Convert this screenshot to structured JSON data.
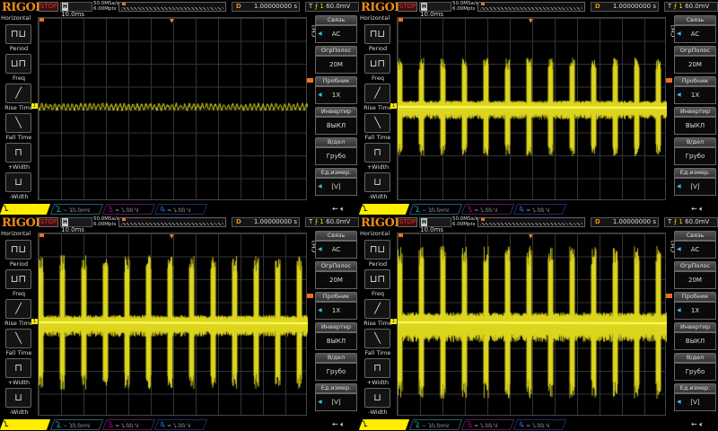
{
  "header": {
    "logo": "RIGOL",
    "status": "STOP",
    "h_icon": "H",
    "timebase": "10.0ms",
    "sample_rate": "50.0MSa/s",
    "memory_depth": "6.00Mpts",
    "delay_label": "D",
    "delay_value": "1.00000000 s",
    "trigger_label": "T",
    "trigger_edge": "rising-edge-icon",
    "trigger_source": "1",
    "trigger_level": "60.0mV"
  },
  "sidebar": {
    "title": "Horizontal",
    "items": [
      {
        "label": "Period",
        "icon": "period-icon"
      },
      {
        "label": "Freq",
        "icon": "freq-icon"
      },
      {
        "label": "Rise Time",
        "icon": "rise-time-icon"
      },
      {
        "label": "Fall Time",
        "icon": "fall-time-icon"
      },
      {
        "label": "+Width",
        "icon": "positive-width-icon"
      },
      {
        "label": "-Width",
        "icon": "negative-width-icon"
      }
    ]
  },
  "menu": {
    "channel": "CH1",
    "items": [
      {
        "title": "Связь",
        "value": "AC",
        "arrow": true
      },
      {
        "title": "ОгрПолос",
        "value": "20M",
        "arrow": false
      },
      {
        "title": "Пробник",
        "value": "1X",
        "arrow": true
      },
      {
        "title": "Инвертир",
        "value": "ВЫКЛ",
        "arrow": false
      },
      {
        "title": "В/дел",
        "value": "Грубо",
        "arrow": false
      },
      {
        "title": "Ед.измер.",
        "value": "[V]",
        "arrow": true
      }
    ]
  },
  "channels": [
    {
      "num": "1",
      "coupling": "~",
      "scale": "50.0mV",
      "bw": "B",
      "color": "#ffee00"
    },
    {
      "num": "2",
      "coupling": "~",
      "scale": "20.0mV",
      "color": "#22aaaa"
    },
    {
      "num": "3",
      "coupling": "=",
      "scale": "1.00 V",
      "color": "#aa00aa"
    },
    {
      "num": "4",
      "coupling": "=",
      "scale": "1.00 V",
      "color": "#3366cc"
    }
  ],
  "status_icons": [
    "usb-icon",
    "speaker-icon"
  ],
  "trace_color": "#e8e020",
  "panels": [
    {
      "signal": "ripple"
    },
    {
      "signal": "bursts"
    },
    {
      "signal": "bursts"
    },
    {
      "signal": "bursts"
    }
  ]
}
